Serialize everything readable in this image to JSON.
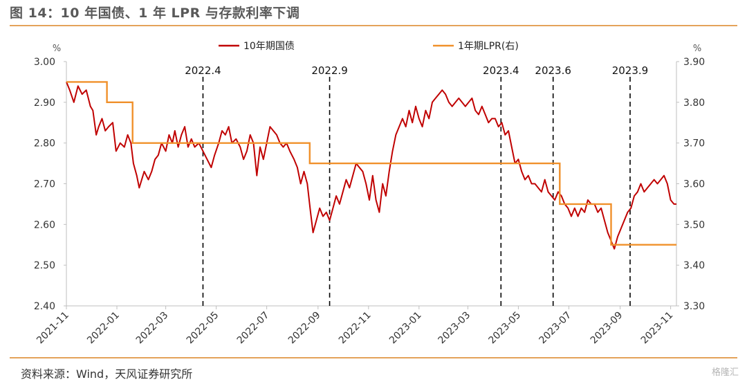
{
  "title": "图 14：10 年国债、1 年 LPR 与存款利率下调",
  "source": "资料来源：Wind，天风证券研究所",
  "watermark": "格隆汇",
  "chart_data": {
    "type": "line",
    "x_axis": {
      "ticks": [
        "2021-11",
        "2022-01",
        "2022-03",
        "2022-05",
        "2022-07",
        "2022-09",
        "2022-11",
        "2023-01",
        "2023-03",
        "2023-05",
        "2023-07",
        "2023-09",
        "2023-11"
      ],
      "range": [
        "2021-11-01",
        "2023-11-08"
      ]
    },
    "y_left": {
      "unit": "%",
      "min": 2.4,
      "max": 3.0,
      "ticks": [
        "2.40",
        "2.50",
        "2.60",
        "2.70",
        "2.80",
        "2.90",
        "3.00"
      ]
    },
    "y_right": {
      "unit": "%",
      "min": 3.3,
      "max": 3.9,
      "ticks": [
        "3.30",
        "3.40",
        "3.50",
        "3.60",
        "3.70",
        "3.80",
        "3.90"
      ]
    },
    "legend_position": "top",
    "series": [
      {
        "name": "10年期国债",
        "axis": "left",
        "color": "#c00000",
        "points": [
          [
            "2021-11-01",
            2.95
          ],
          [
            "2021-11-05",
            2.93
          ],
          [
            "2021-11-10",
            2.9
          ],
          [
            "2021-11-15",
            2.94
          ],
          [
            "2021-11-20",
            2.92
          ],
          [
            "2021-11-25",
            2.93
          ],
          [
            "2021-11-30",
            2.89
          ],
          [
            "2021-12-03",
            2.88
          ],
          [
            "2021-12-07",
            2.82
          ],
          [
            "2021-12-10",
            2.84
          ],
          [
            "2021-12-14",
            2.86
          ],
          [
            "2021-12-18",
            2.83
          ],
          [
            "2021-12-22",
            2.84
          ],
          [
            "2021-12-27",
            2.85
          ],
          [
            "2021-12-31",
            2.78
          ],
          [
            "2022-01-05",
            2.8
          ],
          [
            "2022-01-10",
            2.79
          ],
          [
            "2022-01-14",
            2.82
          ],
          [
            "2022-01-18",
            2.8
          ],
          [
            "2022-01-21",
            2.75
          ],
          [
            "2022-01-25",
            2.72
          ],
          [
            "2022-01-28",
            2.69
          ],
          [
            "2022-02-03",
            2.73
          ],
          [
            "2022-02-08",
            2.71
          ],
          [
            "2022-02-12",
            2.73
          ],
          [
            "2022-02-16",
            2.76
          ],
          [
            "2022-02-20",
            2.77
          ],
          [
            "2022-02-24",
            2.8
          ],
          [
            "2022-03-01",
            2.78
          ],
          [
            "2022-03-05",
            2.82
          ],
          [
            "2022-03-09",
            2.8
          ],
          [
            "2022-03-12",
            2.83
          ],
          [
            "2022-03-16",
            2.79
          ],
          [
            "2022-03-20",
            2.82
          ],
          [
            "2022-03-24",
            2.84
          ],
          [
            "2022-03-28",
            2.79
          ],
          [
            "2022-04-01",
            2.81
          ],
          [
            "2022-04-05",
            2.79
          ],
          [
            "2022-04-10",
            2.8
          ],
          [
            "2022-04-15",
            2.78
          ],
          [
            "2022-04-20",
            2.76
          ],
          [
            "2022-04-25",
            2.74
          ],
          [
            "2022-04-29",
            2.77
          ],
          [
            "2022-05-04",
            2.8
          ],
          [
            "2022-05-08",
            2.83
          ],
          [
            "2022-05-12",
            2.82
          ],
          [
            "2022-05-16",
            2.84
          ],
          [
            "2022-05-20",
            2.8
          ],
          [
            "2022-05-25",
            2.81
          ],
          [
            "2022-05-30",
            2.79
          ],
          [
            "2022-06-03",
            2.76
          ],
          [
            "2022-06-07",
            2.78
          ],
          [
            "2022-06-11",
            2.82
          ],
          [
            "2022-06-15",
            2.8
          ],
          [
            "2022-06-19",
            2.72
          ],
          [
            "2022-06-23",
            2.79
          ],
          [
            "2022-06-27",
            2.76
          ],
          [
            "2022-07-01",
            2.8
          ],
          [
            "2022-07-05",
            2.84
          ],
          [
            "2022-07-09",
            2.83
          ],
          [
            "2022-07-13",
            2.82
          ],
          [
            "2022-07-17",
            2.8
          ],
          [
            "2022-07-21",
            2.79
          ],
          [
            "2022-07-25",
            2.8
          ],
          [
            "2022-07-29",
            2.78
          ],
          [
            "2022-08-03",
            2.76
          ],
          [
            "2022-08-07",
            2.74
          ],
          [
            "2022-08-11",
            2.7
          ],
          [
            "2022-08-15",
            2.73
          ],
          [
            "2022-08-19",
            2.7
          ],
          [
            "2022-08-23",
            2.63
          ],
          [
            "2022-08-26",
            2.58
          ],
          [
            "2022-08-30",
            2.61
          ],
          [
            "2022-09-03",
            2.64
          ],
          [
            "2022-09-07",
            2.62
          ],
          [
            "2022-09-11",
            2.63
          ],
          [
            "2022-09-15",
            2.61
          ],
          [
            "2022-09-19",
            2.64
          ],
          [
            "2022-09-23",
            2.67
          ],
          [
            "2022-09-27",
            2.65
          ],
          [
            "2022-10-01",
            2.68
          ],
          [
            "2022-10-05",
            2.71
          ],
          [
            "2022-10-09",
            2.69
          ],
          [
            "2022-10-13",
            2.72
          ],
          [
            "2022-10-17",
            2.75
          ],
          [
            "2022-10-21",
            2.74
          ],
          [
            "2022-10-25",
            2.73
          ],
          [
            "2022-10-29",
            2.7
          ],
          [
            "2022-11-02",
            2.66
          ],
          [
            "2022-11-06",
            2.72
          ],
          [
            "2022-11-10",
            2.66
          ],
          [
            "2022-11-14",
            2.63
          ],
          [
            "2022-11-18",
            2.7
          ],
          [
            "2022-11-22",
            2.67
          ],
          [
            "2022-11-26",
            2.73
          ],
          [
            "2022-11-30",
            2.78
          ],
          [
            "2022-12-04",
            2.82
          ],
          [
            "2022-12-08",
            2.84
          ],
          [
            "2022-12-12",
            2.86
          ],
          [
            "2022-12-16",
            2.84
          ],
          [
            "2022-12-20",
            2.88
          ],
          [
            "2022-12-24",
            2.85
          ],
          [
            "2022-12-28",
            2.89
          ],
          [
            "2023-01-01",
            2.86
          ],
          [
            "2023-01-05",
            2.84
          ],
          [
            "2023-01-09",
            2.88
          ],
          [
            "2023-01-13",
            2.86
          ],
          [
            "2023-01-17",
            2.9
          ],
          [
            "2023-01-21",
            2.91
          ],
          [
            "2023-01-25",
            2.92
          ],
          [
            "2023-01-29",
            2.93
          ],
          [
            "2023-02-02",
            2.92
          ],
          [
            "2023-02-06",
            2.9
          ],
          [
            "2023-02-10",
            2.89
          ],
          [
            "2023-02-14",
            2.9
          ],
          [
            "2023-02-18",
            2.91
          ],
          [
            "2023-02-22",
            2.9
          ],
          [
            "2023-02-26",
            2.89
          ],
          [
            "2023-03-02",
            2.9
          ],
          [
            "2023-03-06",
            2.91
          ],
          [
            "2023-03-10",
            2.88
          ],
          [
            "2023-03-14",
            2.87
          ],
          [
            "2023-03-18",
            2.89
          ],
          [
            "2023-03-22",
            2.87
          ],
          [
            "2023-03-26",
            2.85
          ],
          [
            "2023-03-30",
            2.86
          ],
          [
            "2023-04-03",
            2.86
          ],
          [
            "2023-04-07",
            2.84
          ],
          [
            "2023-04-11",
            2.85
          ],
          [
            "2023-04-15",
            2.82
          ],
          [
            "2023-04-19",
            2.83
          ],
          [
            "2023-04-23",
            2.79
          ],
          [
            "2023-04-27",
            2.75
          ],
          [
            "2023-05-01",
            2.76
          ],
          [
            "2023-05-05",
            2.73
          ],
          [
            "2023-05-09",
            2.71
          ],
          [
            "2023-05-13",
            2.72
          ],
          [
            "2023-05-17",
            2.7
          ],
          [
            "2023-05-21",
            2.7
          ],
          [
            "2023-05-25",
            2.69
          ],
          [
            "2023-05-29",
            2.68
          ],
          [
            "2023-06-02",
            2.71
          ],
          [
            "2023-06-06",
            2.68
          ],
          [
            "2023-06-10",
            2.67
          ],
          [
            "2023-06-14",
            2.66
          ],
          [
            "2023-06-18",
            2.68
          ],
          [
            "2023-06-22",
            2.67
          ],
          [
            "2023-06-26",
            2.65
          ],
          [
            "2023-06-30",
            2.64
          ],
          [
            "2023-07-04",
            2.62
          ],
          [
            "2023-07-08",
            2.64
          ],
          [
            "2023-07-12",
            2.62
          ],
          [
            "2023-07-16",
            2.64
          ],
          [
            "2023-07-20",
            2.63
          ],
          [
            "2023-07-24",
            2.66
          ],
          [
            "2023-07-28",
            2.65
          ],
          [
            "2023-08-01",
            2.65
          ],
          [
            "2023-08-05",
            2.63
          ],
          [
            "2023-08-09",
            2.64
          ],
          [
            "2023-08-13",
            2.61
          ],
          [
            "2023-08-17",
            2.58
          ],
          [
            "2023-08-21",
            2.56
          ],
          [
            "2023-08-25",
            2.54
          ],
          [
            "2023-08-29",
            2.57
          ],
          [
            "2023-09-02",
            2.59
          ],
          [
            "2023-09-06",
            2.61
          ],
          [
            "2023-09-10",
            2.63
          ],
          [
            "2023-09-14",
            2.64
          ],
          [
            "2023-09-18",
            2.67
          ],
          [
            "2023-09-22",
            2.68
          ],
          [
            "2023-09-26",
            2.7
          ],
          [
            "2023-09-30",
            2.68
          ],
          [
            "2023-10-04",
            2.69
          ],
          [
            "2023-10-08",
            2.7
          ],
          [
            "2023-10-12",
            2.71
          ],
          [
            "2023-10-16",
            2.7
          ],
          [
            "2023-10-20",
            2.71
          ],
          [
            "2023-10-24",
            2.72
          ],
          [
            "2023-10-28",
            2.7
          ],
          [
            "2023-11-01",
            2.66
          ],
          [
            "2023-11-05",
            2.65
          ],
          [
            "2023-11-08",
            2.65
          ]
        ]
      },
      {
        "name": "1年期LPR(右)",
        "axis": "right",
        "color": "#f0902a",
        "steps": [
          [
            "2021-11-01",
            3.85
          ],
          [
            "2021-12-20",
            3.8
          ],
          [
            "2022-01-20",
            3.7
          ],
          [
            "2022-08-22",
            3.65
          ],
          [
            "2023-06-20",
            3.55
          ],
          [
            "2023-08-21",
            3.45
          ],
          [
            "2023-11-08",
            3.45
          ]
        ]
      }
    ],
    "annotations": [
      {
        "label": "2022.4",
        "date": "2022-04-15"
      },
      {
        "label": "2022.9",
        "date": "2022-09-15"
      },
      {
        "label": "2023.4",
        "date": "2023-04-10"
      },
      {
        "label": "2023.6",
        "date": "2023-06-12"
      },
      {
        "label": "2023.9",
        "date": "2023-09-13"
      }
    ]
  }
}
